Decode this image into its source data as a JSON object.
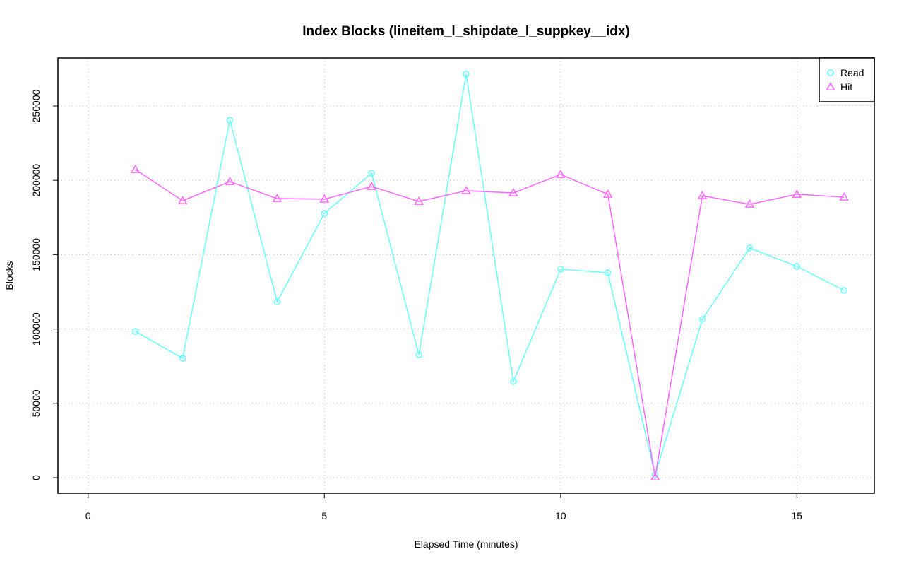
{
  "chart_data": {
    "type": "line",
    "title": "Index Blocks (lineitem_l_shipdate_l_suppkey__idx)",
    "x_label": "Elapsed Time (minutes)",
    "y_label": "Blocks",
    "x": [
      1,
      2,
      3,
      4,
      5,
      6,
      7,
      8,
      9,
      10,
      11,
      12,
      13,
      14,
      15,
      16
    ],
    "series": [
      {
        "name": "Read",
        "color": "#66ffff",
        "marker": "circle",
        "values": [
          98400,
          80300,
          240500,
          118300,
          177800,
          204800,
          82700,
          271400,
          64600,
          140200,
          137800,
          1900,
          106500,
          154500,
          142100,
          126000
        ]
      },
      {
        "name": "Hit",
        "color": "#ff66ff",
        "marker": "triangle",
        "values": [
          207200,
          186300,
          199100,
          187700,
          187300,
          195800,
          185800,
          193000,
          191500,
          203900,
          190600,
          500,
          189600,
          183900,
          190600,
          188700
        ]
      }
    ],
    "xlim": [
      -0.64,
      16.64
    ],
    "ylim": [
      -10450,
      282300
    ],
    "xticks": [
      0,
      5,
      10,
      15
    ],
    "yticks": [
      0,
      50000,
      100000,
      150000,
      200000,
      250000
    ],
    "grid": true,
    "legend": "top-right"
  }
}
